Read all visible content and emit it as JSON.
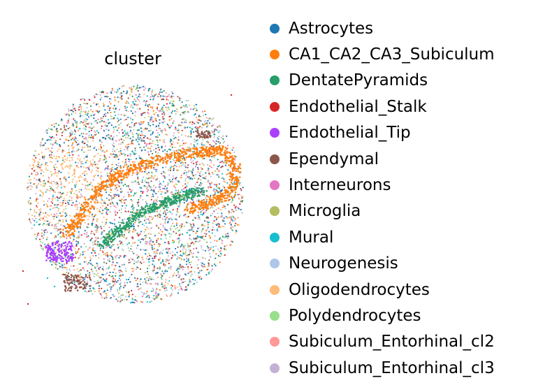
{
  "chart_data": {
    "type": "scatter",
    "title": "cluster",
    "axes_visible": false,
    "grid": false,
    "legend_position": "right",
    "series": [
      {
        "name": "Astrocytes",
        "color": "#1f77b4"
      },
      {
        "name": "CA1_CA2_CA3_Subiculum",
        "color": "#ff7f0e"
      },
      {
        "name": "DentatePyramids",
        "color": "#279e68"
      },
      {
        "name": "Endothelial_Stalk",
        "color": "#d62728"
      },
      {
        "name": "Endothelial_Tip",
        "color": "#aa40fc"
      },
      {
        "name": "Ependymal",
        "color": "#8c564b"
      },
      {
        "name": "Interneurons",
        "color": "#e377c2"
      },
      {
        "name": "Microglia",
        "color": "#b5bd61"
      },
      {
        "name": "Mural",
        "color": "#17becf"
      },
      {
        "name": "Neurogenesis",
        "color": "#aec7e8"
      },
      {
        "name": "Oligodendrocytes",
        "color": "#ffbb78"
      },
      {
        "name": "Polydendrocytes",
        "color": "#98df8a"
      },
      {
        "name": "Subiculum_Entorhinal_cl2",
        "color": "#ff9896"
      },
      {
        "name": "Subiculum_Entorhinal_cl3",
        "color": "#c5b0d5"
      }
    ]
  }
}
